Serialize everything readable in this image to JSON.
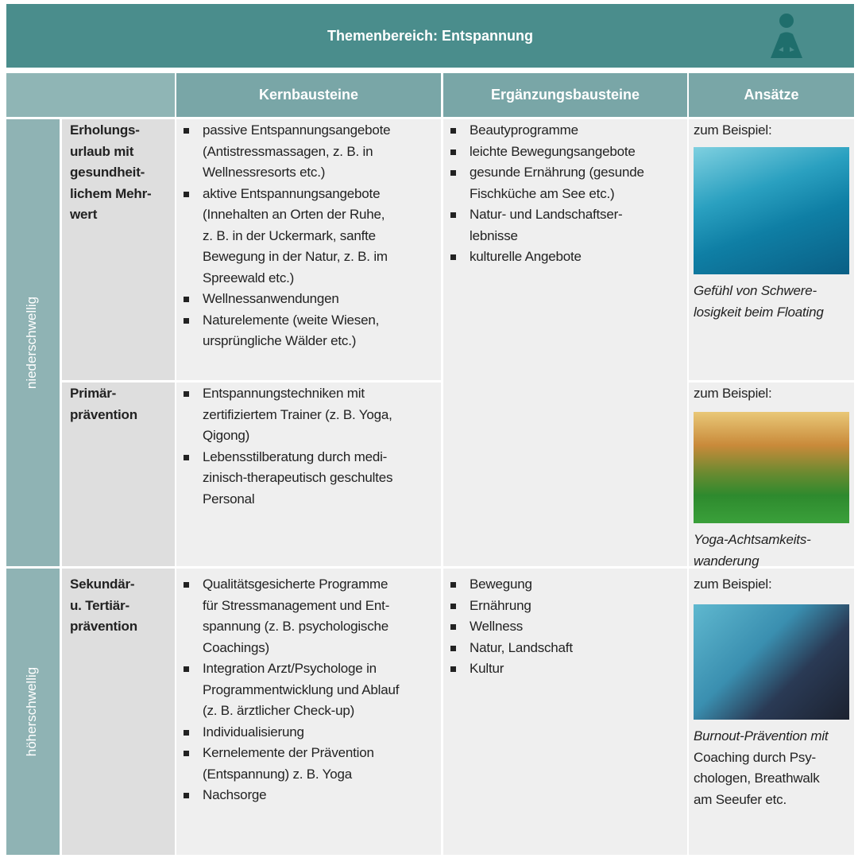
{
  "header": {
    "title": "Themenbereich: Entspannung"
  },
  "table": {
    "columns": [
      "Kernbausteine",
      "Ergänzungsbausteine",
      "Ansätze"
    ],
    "groups": [
      "niederschwellig",
      "höherschwellig"
    ],
    "rows": [
      {
        "label": [
          "Erholungs-",
          "urlaub mit",
          "gesundheit-",
          "lichem Mehr-",
          "wert"
        ],
        "kern": [
          [
            "passive Entspannungsangebote",
            "(Antistressmassagen, z. B. in",
            "Wellnessresorts etc.)"
          ],
          [
            "aktive Entspannungsangebote",
            "(Innehalten an Orten der Ruhe,",
            "z. B. in der Uckermark, sanfte",
            "Bewegung in der Natur, z. B. im",
            "Spreewald etc.)"
          ],
          [
            "Wellnessanwendungen"
          ],
          [
            "Naturelemente (weite Wiesen,",
            "ursprüngliche Wälder etc.)"
          ]
        ],
        "ansatz": {
          "intro": "zum Beispiel:",
          "caption_italic": [
            "Gefühl von Schwere-",
            "losigkeit beim Floating"
          ],
          "caption": []
        }
      },
      {
        "label": [
          "Primär-",
          "prävention"
        ],
        "kern": [
          [
            "Entspannungstechniken mit",
            "zertifiziertem Trainer (z. B. Yoga,",
            "Qigong)"
          ],
          [
            "Lebensstilberatung durch medi-",
            "zinisch-therapeutisch geschultes",
            "Personal"
          ]
        ],
        "ansatz": {
          "intro": "zum Beispiel:",
          "caption_italic": [
            "Yoga-Achtsamkeits-",
            "wanderung"
          ],
          "caption": []
        }
      },
      {
        "label": [
          "Sekundär-",
          "u. Tertiär-",
          "prävention"
        ],
        "kern": [
          [
            "Qualitätsgesicherte Programme",
            "für Stressmanagement und Ent-",
            "spannung (z. B. psychologische",
            "Coachings)"
          ],
          [
            "Integration Arzt/Psychologe in",
            "Programmentwicklung und Ablauf",
            "(z. B. ärztlicher Check-up)"
          ],
          [
            "Individualisierung"
          ],
          [
            "Kernelemente der Prävention",
            "(Entspannung) z. B. Yoga"
          ],
          [
            "Nachsorge"
          ]
        ],
        "ansatz": {
          "intro": "zum Beispiel:",
          "caption_italic": [
            "Burnout-Prävention mit"
          ],
          "caption": [
            "Coaching durch Psy-",
            "chologen, Breathwalk",
            "am Seeufer etc."
          ]
        }
      }
    ],
    "ergaenzung": [
      [
        [
          "Beautyprogramme"
        ],
        [
          "leichte Bewegungsangebote"
        ],
        [
          "gesunde Ernährung (gesunde",
          "Fischküche am See etc.)"
        ],
        [
          "Natur- und Landschaftser-",
          "lebnisse"
        ],
        [
          "kulturelle Angebote"
        ]
      ],
      [
        [
          "Bewegung"
        ],
        [
          "Ernährung"
        ],
        [
          "Wellness"
        ],
        [
          "Natur, Landschaft"
        ],
        [
          "Kultur"
        ]
      ]
    ]
  }
}
